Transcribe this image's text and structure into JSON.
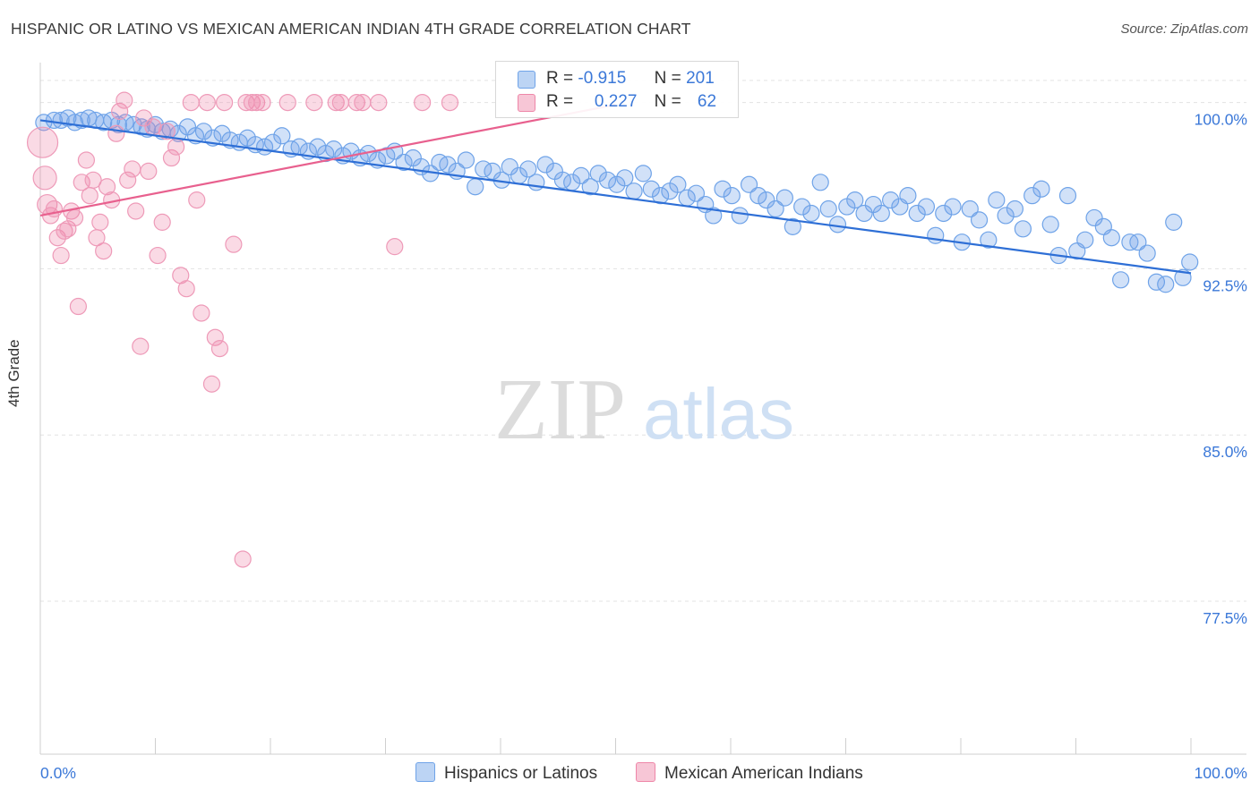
{
  "title": "HISPANIC OR LATINO VS MEXICAN AMERICAN INDIAN 4TH GRADE CORRELATION CHART",
  "source": "Source: ZipAtlas.com",
  "watermark": {
    "zip": "ZIP",
    "atlas": "atlas"
  },
  "legend": {
    "r_label": "R =",
    "n_label": "N =",
    "series": [
      {
        "name": "Hispanics or Latinos",
        "r": "-0.915",
        "n": "201",
        "color": "#6fa3e8",
        "fill": "#bcd4f4"
      },
      {
        "name": "Mexican American Indians",
        "r": "0.227",
        "n": "62",
        "color": "#ee86a8",
        "fill": "#f7c6d6"
      }
    ]
  },
  "chart_data": {
    "type": "scatter",
    "title": "HISPANIC OR LATINO VS MEXICAN AMERICAN INDIAN 4TH GRADE CORRELATION CHART",
    "xlabel": "",
    "ylabel": "4th Grade",
    "xlim": [
      0,
      100
    ],
    "ylim": [
      70.6,
      101.8
    ],
    "x_tick_labels": [
      "0.0%",
      "100.0%"
    ],
    "y_ticks": [
      77.5,
      85.0,
      92.5,
      100.0
    ],
    "y_tick_labels": [
      "77.5%",
      "85.0%",
      "92.5%",
      "100.0%"
    ],
    "grid": true,
    "legend_position": "top-center",
    "series": [
      {
        "name": "Hispanics or Latinos",
        "color": "#6fa3e8",
        "trend": {
          "x": [
            0,
            100
          ],
          "y": [
            99.2,
            92.3
          ]
        },
        "points": [
          [
            0.3,
            99.1
          ],
          [
            1.2,
            99.2
          ],
          [
            1.8,
            99.2
          ],
          [
            2.4,
            99.3
          ],
          [
            3.0,
            99.1
          ],
          [
            3.6,
            99.2
          ],
          [
            4.2,
            99.3
          ],
          [
            4.8,
            99.2
          ],
          [
            5.5,
            99.1
          ],
          [
            6.2,
            99.2
          ],
          [
            6.8,
            99.0
          ],
          [
            7.4,
            99.1
          ],
          [
            8.1,
            99.0
          ],
          [
            8.8,
            98.9
          ],
          [
            9.3,
            98.8
          ],
          [
            10.0,
            99.0
          ],
          [
            10.6,
            98.7
          ],
          [
            11.3,
            98.8
          ],
          [
            12.0,
            98.6
          ],
          [
            12.8,
            98.9
          ],
          [
            13.5,
            98.5
          ],
          [
            14.2,
            98.7
          ],
          [
            15.0,
            98.4
          ],
          [
            15.8,
            98.6
          ],
          [
            16.5,
            98.3
          ],
          [
            17.3,
            98.2
          ],
          [
            18.0,
            98.4
          ],
          [
            18.7,
            98.1
          ],
          [
            19.5,
            98.0
          ],
          [
            20.2,
            98.2
          ],
          [
            21.0,
            98.5
          ],
          [
            21.8,
            97.9
          ],
          [
            22.5,
            98.0
          ],
          [
            23.3,
            97.8
          ],
          [
            24.1,
            98.0
          ],
          [
            24.8,
            97.7
          ],
          [
            25.5,
            97.9
          ],
          [
            26.3,
            97.6
          ],
          [
            27.0,
            97.8
          ],
          [
            27.8,
            97.5
          ],
          [
            28.5,
            97.7
          ],
          [
            29.3,
            97.4
          ],
          [
            30.1,
            97.6
          ],
          [
            30.8,
            97.8
          ],
          [
            31.6,
            97.3
          ],
          [
            32.4,
            97.5
          ],
          [
            33.1,
            97.1
          ],
          [
            33.9,
            96.8
          ],
          [
            34.7,
            97.3
          ],
          [
            35.4,
            97.2
          ],
          [
            36.2,
            96.9
          ],
          [
            37.0,
            97.4
          ],
          [
            37.8,
            96.2
          ],
          [
            38.5,
            97.0
          ],
          [
            39.3,
            96.9
          ],
          [
            40.1,
            96.5
          ],
          [
            40.8,
            97.1
          ],
          [
            41.6,
            96.7
          ],
          [
            42.4,
            97.0
          ],
          [
            43.1,
            96.4
          ],
          [
            43.9,
            97.2
          ],
          [
            44.7,
            96.9
          ],
          [
            45.4,
            96.5
          ],
          [
            46.2,
            96.4
          ],
          [
            47.0,
            96.7
          ],
          [
            47.8,
            96.2
          ],
          [
            48.5,
            96.8
          ],
          [
            49.3,
            96.5
          ],
          [
            50.1,
            96.3
          ],
          [
            50.8,
            96.6
          ],
          [
            51.6,
            96.0
          ],
          [
            52.4,
            96.8
          ],
          [
            53.1,
            96.1
          ],
          [
            53.9,
            95.8
          ],
          [
            54.7,
            96.0
          ],
          [
            55.4,
            96.3
          ],
          [
            56.2,
            95.7
          ],
          [
            57.0,
            95.9
          ],
          [
            57.8,
            95.4
          ],
          [
            58.5,
            94.9
          ],
          [
            59.3,
            96.1
          ],
          [
            60.1,
            95.8
          ],
          [
            60.8,
            94.9
          ],
          [
            61.6,
            96.3
          ],
          [
            62.4,
            95.8
          ],
          [
            63.1,
            95.6
          ],
          [
            63.9,
            95.2
          ],
          [
            64.7,
            95.7
          ],
          [
            65.4,
            94.4
          ],
          [
            66.2,
            95.3
          ],
          [
            67.0,
            95.0
          ],
          [
            67.8,
            96.4
          ],
          [
            68.5,
            95.2
          ],
          [
            69.3,
            94.5
          ],
          [
            70.1,
            95.3
          ],
          [
            70.8,
            95.6
          ],
          [
            71.6,
            95.0
          ],
          [
            72.4,
            95.4
          ],
          [
            73.1,
            95.0
          ],
          [
            73.9,
            95.6
          ],
          [
            74.7,
            95.3
          ],
          [
            75.4,
            95.8
          ],
          [
            76.2,
            95.0
          ],
          [
            77.0,
            95.3
          ],
          [
            77.8,
            94.0
          ],
          [
            78.5,
            95.0
          ],
          [
            79.3,
            95.3
          ],
          [
            80.1,
            93.7
          ],
          [
            80.8,
            95.2
          ],
          [
            81.6,
            94.7
          ],
          [
            82.4,
            93.8
          ],
          [
            83.1,
            95.6
          ],
          [
            83.9,
            94.9
          ],
          [
            84.7,
            95.2
          ],
          [
            85.4,
            94.3
          ],
          [
            86.2,
            95.8
          ],
          [
            87.0,
            96.1
          ],
          [
            87.8,
            94.5
          ],
          [
            88.5,
            93.1
          ],
          [
            89.3,
            95.8
          ],
          [
            90.1,
            93.3
          ],
          [
            90.8,
            93.8
          ],
          [
            91.6,
            94.8
          ],
          [
            92.4,
            94.4
          ],
          [
            93.1,
            93.9
          ],
          [
            93.9,
            92.0
          ],
          [
            94.7,
            93.7
          ],
          [
            95.4,
            93.7
          ],
          [
            96.2,
            93.2
          ],
          [
            97.0,
            91.9
          ],
          [
            97.8,
            91.8
          ],
          [
            98.5,
            94.6
          ],
          [
            99.3,
            92.1
          ],
          [
            99.9,
            92.8
          ]
        ]
      },
      {
        "name": "Mexican American Indians",
        "color": "#ee86a8",
        "trend": {
          "x": [
            0,
            50
          ],
          "y": [
            94.9,
            99.9
          ]
        },
        "points": [
          [
            0.2,
            98.2
          ],
          [
            0.4,
            96.6
          ],
          [
            0.6,
            95.4
          ],
          [
            0.9,
            94.9
          ],
          [
            1.2,
            95.2
          ],
          [
            1.5,
            93.9
          ],
          [
            1.8,
            93.1
          ],
          [
            2.1,
            94.2
          ],
          [
            2.4,
            94.3
          ],
          [
            2.7,
            95.1
          ],
          [
            3.0,
            94.8
          ],
          [
            3.3,
            90.8
          ],
          [
            3.6,
            96.4
          ],
          [
            4.0,
            97.4
          ],
          [
            4.3,
            95.8
          ],
          [
            4.6,
            96.5
          ],
          [
            4.9,
            93.9
          ],
          [
            5.2,
            94.6
          ],
          [
            5.5,
            93.3
          ],
          [
            5.8,
            96.2
          ],
          [
            6.2,
            95.6
          ],
          [
            6.6,
            98.6
          ],
          [
            6.9,
            99.6
          ],
          [
            7.3,
            100.1
          ],
          [
            7.6,
            96.5
          ],
          [
            8.0,
            97.0
          ],
          [
            8.3,
            95.1
          ],
          [
            8.7,
            89.0
          ],
          [
            9.0,
            99.3
          ],
          [
            9.4,
            96.9
          ],
          [
            9.8,
            98.9
          ],
          [
            10.2,
            93.1
          ],
          [
            10.6,
            94.6
          ],
          [
            11.0,
            98.7
          ],
          [
            11.4,
            97.5
          ],
          [
            11.8,
            98.0
          ],
          [
            12.2,
            92.2
          ],
          [
            12.7,
            91.6
          ],
          [
            13.1,
            100.0
          ],
          [
            13.6,
            95.6
          ],
          [
            14.0,
            90.5
          ],
          [
            14.5,
            100.0
          ],
          [
            14.9,
            87.3
          ],
          [
            15.2,
            89.4
          ],
          [
            15.6,
            88.9
          ],
          [
            16.0,
            100.0
          ],
          [
            16.8,
            93.6
          ],
          [
            17.6,
            79.4
          ],
          [
            17.9,
            100.0
          ],
          [
            18.4,
            100.0
          ],
          [
            18.8,
            100.0
          ],
          [
            19.3,
            100.0
          ],
          [
            21.5,
            100.0
          ],
          [
            23.8,
            100.0
          ],
          [
            25.7,
            100.0
          ],
          [
            26.1,
            100.0
          ],
          [
            27.5,
            100.0
          ],
          [
            28.0,
            100.0
          ],
          [
            29.4,
            100.0
          ],
          [
            30.8,
            93.5
          ],
          [
            33.2,
            100.0
          ],
          [
            35.6,
            100.0
          ]
        ]
      }
    ]
  }
}
